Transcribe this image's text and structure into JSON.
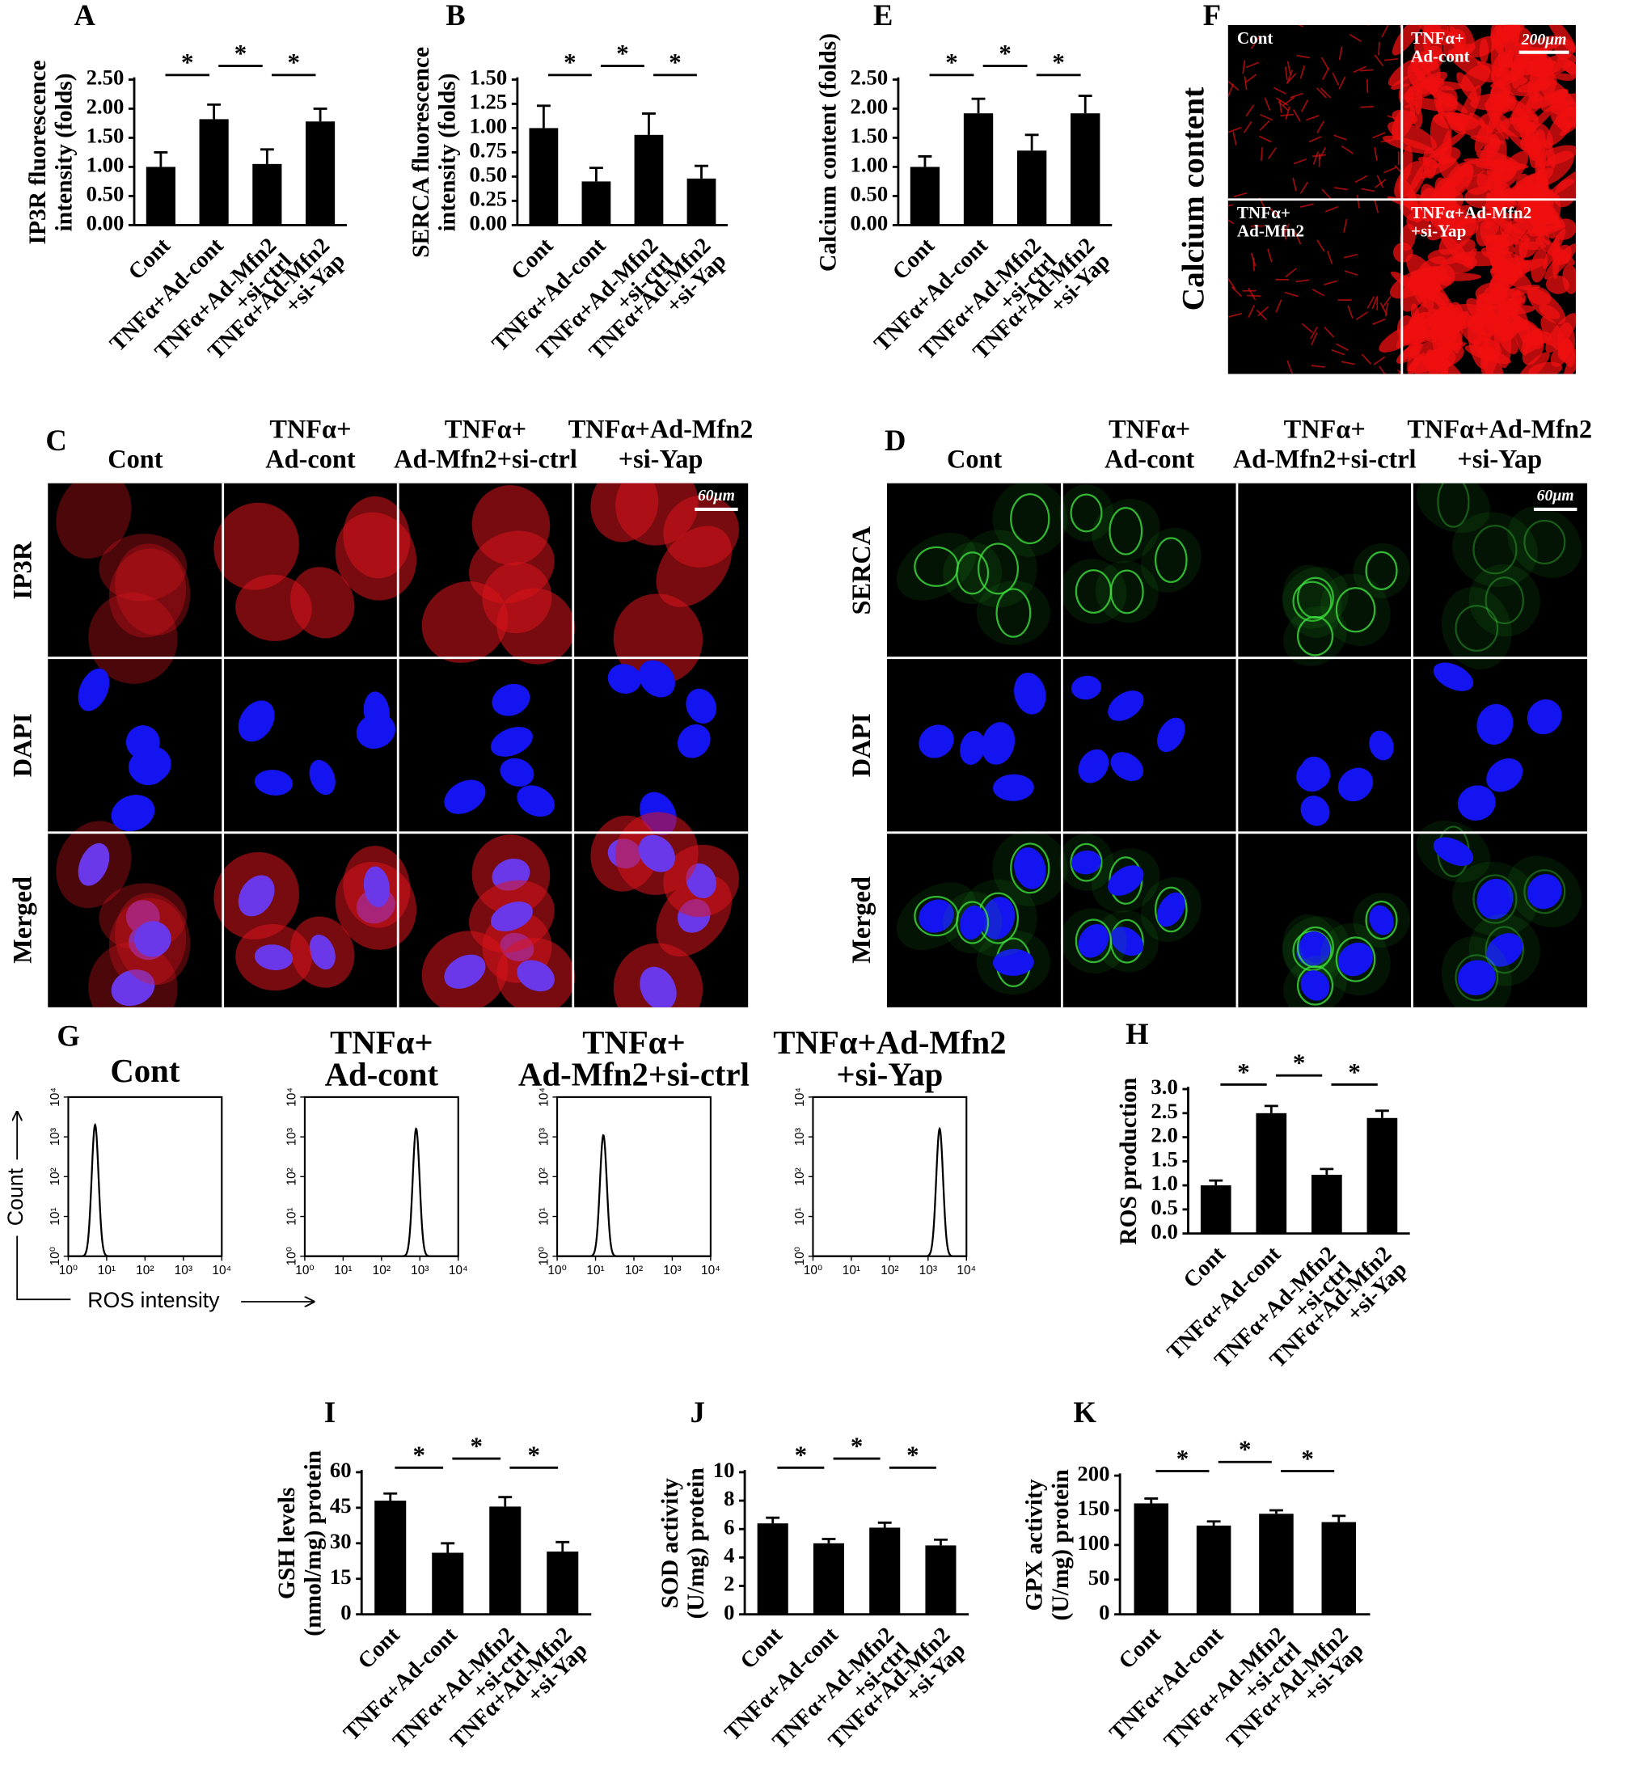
{
  "chart_data": [
    {
      "type": "bar",
      "label": "A",
      "ylabel": [
        "IP3R fluorescence",
        "intensity (folds)"
      ],
      "categories": [
        [
          "Cont"
        ],
        [
          "TNFα+Ad-cont"
        ],
        [
          "TNFα+Ad-Mfn2",
          "+si-ctrl"
        ],
        [
          "TNFα+Ad-Mfn2",
          "+si-Yap"
        ]
      ],
      "values": [
        1.0,
        1.82,
        1.05,
        1.78
      ],
      "errors": [
        0.25,
        0.25,
        0.25,
        0.22
      ],
      "annotations": [
        "*",
        "*",
        "*"
      ],
      "color": "#000000",
      "ylim": [
        0,
        2.5
      ],
      "yticks": [
        {
          "value": 0,
          "label": "0.00"
        },
        {
          "value": 0.5,
          "label": "0.50"
        },
        {
          "value": 1,
          "label": "1.00"
        },
        {
          "value": 1.5,
          "label": "1.50"
        },
        {
          "value": 2,
          "label": "2.00"
        },
        {
          "value": 2.5,
          "label": "2.50"
        }
      ]
    },
    {
      "type": "bar",
      "label": "B",
      "ylabel": [
        "SERCA fluorescence",
        "intensity (folds)"
      ],
      "categories": [
        [
          "Cont"
        ],
        [
          "TNFα+Ad-cont"
        ],
        [
          "TNFα+Ad-Mfn2",
          "+si-ctrl"
        ],
        [
          "TNFα+Ad-Mfn2",
          "+si-Yap"
        ]
      ],
      "values": [
        1.0,
        0.45,
        0.93,
        0.48
      ],
      "errors": [
        0.23,
        0.14,
        0.22,
        0.13
      ],
      "annotations": [
        "*",
        "*",
        "*"
      ],
      "color": "#000000",
      "ylim": [
        0,
        1.5
      ],
      "yticks": [
        {
          "value": 0,
          "label": "0.00"
        },
        {
          "value": 0.25,
          "label": "0.25"
        },
        {
          "value": 0.5,
          "label": "0.50"
        },
        {
          "value": 0.75,
          "label": "0.75"
        },
        {
          "value": 1,
          "label": "1.00"
        },
        {
          "value": 1.25,
          "label": "1.25"
        },
        {
          "value": 1.5,
          "label": "1.50"
        }
      ]
    },
    {
      "type": "bar",
      "label": "E",
      "ylabel": [
        "Calcium content (folds)"
      ],
      "categories": [
        [
          "Cont"
        ],
        [
          "TNFα+Ad-cont"
        ],
        [
          "TNFα+Ad-Mfn2",
          "+si-ctrl"
        ],
        [
          "TNFα+Ad-Mfn2",
          "+si-Yap"
        ]
      ],
      "values": [
        1.0,
        1.92,
        1.28,
        1.92
      ],
      "errors": [
        0.18,
        0.25,
        0.27,
        0.3
      ],
      "annotations": [
        "*",
        "*",
        "*"
      ],
      "color": "#000000",
      "ylim": [
        0,
        2.5
      ],
      "yticks": [
        {
          "value": 0,
          "label": "0.00"
        },
        {
          "value": 0.5,
          "label": "0.50"
        },
        {
          "value": 1,
          "label": "1.00"
        },
        {
          "value": 1.5,
          "label": "1.50"
        },
        {
          "value": 2,
          "label": "2.00"
        },
        {
          "value": 2.5,
          "label": "2.50"
        }
      ]
    },
    {
      "type": "bar",
      "label": "H",
      "ylabel": [
        "ROS production"
      ],
      "categories": [
        [
          "Cont"
        ],
        [
          "TNFα+Ad-cont"
        ],
        [
          "TNFα+Ad-Mfn2",
          "+si-ctrl"
        ],
        [
          "TNFα+Ad-Mfn2",
          "+si-Yap"
        ]
      ],
      "values": [
        1.0,
        2.5,
        1.22,
        2.4
      ],
      "errors": [
        0.1,
        0.15,
        0.12,
        0.15
      ],
      "annotations": [
        "*",
        "*",
        "*"
      ],
      "color": "#000000",
      "ylim": [
        0,
        3
      ],
      "yticks": [
        {
          "value": 0,
          "label": "0.0"
        },
        {
          "value": 0.5,
          "label": "0.5"
        },
        {
          "value": 1,
          "label": "1.0"
        },
        {
          "value": 1.5,
          "label": "1.5"
        },
        {
          "value": 2,
          "label": "2.0"
        },
        {
          "value": 2.5,
          "label": "2.5"
        },
        {
          "value": 3,
          "label": "3.0"
        }
      ]
    },
    {
      "type": "bar",
      "label": "I",
      "ylabel": [
        "GSH levels",
        "(nmol/mg) protein"
      ],
      "categories": [
        [
          "Cont"
        ],
        [
          "TNFα+Ad-cont"
        ],
        [
          "TNFα+Ad-Mfn2",
          "+si-ctrl"
        ],
        [
          "TNFα+Ad-Mfn2",
          "+si-Yap"
        ]
      ],
      "values": [
        48,
        26,
        45.5,
        26.5
      ],
      "errors": [
        3,
        4,
        4,
        4
      ],
      "annotations": [
        "*",
        "*",
        "*"
      ],
      "color": "#000000",
      "ylim": [
        0,
        60
      ],
      "yticks": [
        0,
        15,
        30,
        45,
        60
      ]
    },
    {
      "type": "bar",
      "label": "J",
      "ylabel": [
        "SOD activity",
        "(U/mg) protein"
      ],
      "categories": [
        [
          "Cont"
        ],
        [
          "TNFα+Ad-cont"
        ],
        [
          "TNFα+Ad-Mfn2",
          "+si-ctrl"
        ],
        [
          "TNFα+Ad-Mfn2",
          "+si-Yap"
        ]
      ],
      "values": [
        6.4,
        5.0,
        6.1,
        4.85
      ],
      "errors": [
        0.4,
        0.3,
        0.35,
        0.4
      ],
      "annotations": [
        "*",
        "*",
        "*"
      ],
      "color": "#000000",
      "ylim": [
        0,
        10
      ],
      "yticks": [
        0,
        2,
        4,
        6,
        8,
        10
      ]
    },
    {
      "type": "bar",
      "label": "K",
      "ylabel": [
        "GPX activity",
        "(U/mg) protein"
      ],
      "categories": [
        [
          "Cont"
        ],
        [
          "TNFα+Ad-cont"
        ],
        [
          "TNFα+Ad-Mfn2",
          "+si-ctrl"
        ],
        [
          "TNFα+Ad-Mfn2",
          "+si-Yap"
        ]
      ],
      "values": [
        160,
        128,
        145,
        133
      ],
      "errors": [
        7,
        6,
        5,
        9
      ],
      "annotations": [
        "*",
        "*",
        "*"
      ],
      "color": "#000000",
      "ylim": [
        0,
        200
      ],
      "yticks": [
        0,
        50,
        100,
        150,
        200
      ]
    },
    {
      "type": "flow",
      "label": "G",
      "log": true,
      "titles": [
        [
          "Cont"
        ],
        [
          "TNFα+",
          "Ad-cont"
        ],
        [
          "TNFα+",
          "Ad-Mfn2+si-ctrl"
        ],
        [
          "TNFα+Ad-Mfn2",
          "+si-Yap"
        ]
      ],
      "peak_x": [
        5,
        800,
        16,
        2000
      ],
      "peak_y": [
        2000,
        1600,
        1100,
        1600
      ],
      "xlabel": "ROS intensity",
      "ylabel": "Count",
      "xlim": [
        1,
        10000
      ],
      "xticks": [
        {
          "value": 1,
          "label": "10⁰"
        },
        {
          "value": 10,
          "label": "10¹"
        },
        {
          "value": 100,
          "label": "10²"
        },
        {
          "value": 1000,
          "label": "10³"
        },
        {
          "value": 10000,
          "label": "10⁴"
        }
      ],
      "ylim": [
        1,
        10000
      ],
      "yticks": [
        {
          "value": 1,
          "label": "10⁰"
        },
        {
          "value": 10,
          "label": "10¹"
        },
        {
          "value": 100,
          "label": "10²"
        },
        {
          "value": 1000,
          "label": "10³"
        },
        {
          "value": 10000,
          "label": "10⁴"
        }
      ]
    }
  ],
  "panel_C": {
    "label": "C",
    "columns": [
      [
        "Cont"
      ],
      [
        "TNFα+",
        "Ad-cont"
      ],
      [
        "TNFα+",
        "Ad-Mfn2+si-ctrl"
      ],
      [
        "TNFα+Ad-Mfn2",
        "+si-Yap"
      ]
    ],
    "rows": [
      "IP3R",
      "DAPI",
      "Merged"
    ],
    "scale_bar": "60μm"
  },
  "panel_D": {
    "label": "D",
    "columns": [
      [
        "Cont"
      ],
      [
        "TNFα+",
        "Ad-cont"
      ],
      [
        "TNFα+",
        "Ad-Mfn2+si-ctrl"
      ],
      [
        "TNFα+Ad-Mfn2",
        "+si-Yap"
      ]
    ],
    "rows": [
      "SERCA",
      "DAPI",
      "Merged"
    ],
    "scale_bar": "60μm"
  },
  "panel_F": {
    "label": "F",
    "side_label": "Calcium content",
    "cells": [
      [
        "Cont"
      ],
      [
        "TNFα+",
        "Ad-cont"
      ],
      [
        "TNFα+",
        "Ad-Mfn2"
      ],
      [
        "TNFα+Ad-Mfn2",
        "+si-Yap"
      ]
    ],
    "scale_bar": "200μm"
  }
}
